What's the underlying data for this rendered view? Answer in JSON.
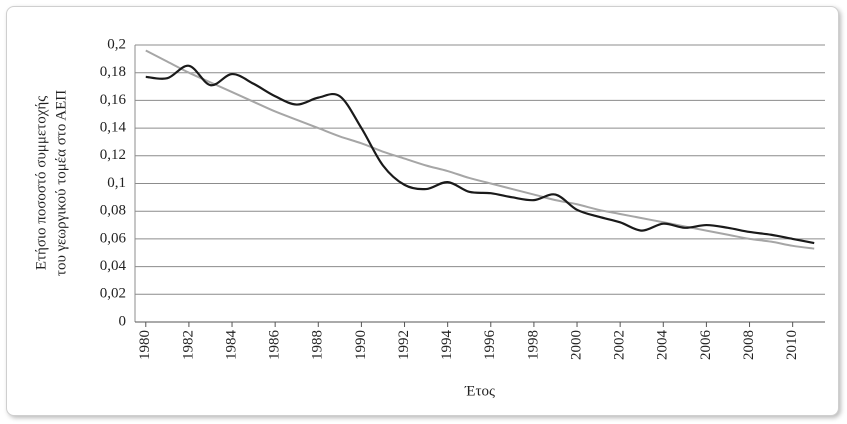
{
  "chart_data": {
    "type": "line",
    "ylabel": [
      "Ετήσιο ποσοστό συμμετοχής",
      "του γεωργικού τομέα στο ΑΕΠ"
    ],
    "xlabel": "Έτος",
    "x": [
      1980,
      1981,
      1982,
      1983,
      1984,
      1985,
      1986,
      1987,
      1988,
      1989,
      1990,
      1991,
      1992,
      1993,
      1994,
      1995,
      1996,
      1997,
      1998,
      1999,
      2000,
      2001,
      2002,
      2003,
      2004,
      2005,
      2006,
      2007,
      2008,
      2009,
      2010,
      2011
    ],
    "series": [
      {
        "color": "#1a1a1a",
        "values": [
          0.177,
          0.176,
          0.185,
          0.171,
          0.179,
          0.172,
          0.163,
          0.157,
          0.162,
          0.163,
          0.14,
          0.113,
          0.099,
          0.096,
          0.101,
          0.094,
          0.093,
          0.09,
          0.088,
          0.092,
          0.081,
          0.076,
          0.072,
          0.066,
          0.071,
          0.068,
          0.07,
          0.068,
          0.065,
          0.063,
          0.06,
          0.057
        ]
      },
      {
        "color": "#a6a6a6",
        "values": [
          0.196,
          0.188,
          0.18,
          0.173,
          0.166,
          0.159,
          0.152,
          0.146,
          0.14,
          0.134,
          0.129,
          0.123,
          0.118,
          0.113,
          0.109,
          0.104,
          0.1,
          0.096,
          0.092,
          0.088,
          0.085,
          0.081,
          0.078,
          0.075,
          0.072,
          0.069,
          0.066,
          0.063,
          0.06,
          0.058,
          0.055,
          0.053
        ]
      }
    ],
    "xlim": [
      1979.5,
      2011.5
    ],
    "xticks": [
      1980,
      1982,
      1984,
      1986,
      1988,
      1990,
      1992,
      1994,
      1996,
      1998,
      2000,
      2002,
      2004,
      2006,
      2008,
      2010
    ],
    "ylim": [
      0,
      0.2
    ],
    "yticks": [
      0,
      {
        "value": 0.02,
        "label": "0,02"
      },
      {
        "value": 0.04,
        "label": "0,04"
      },
      {
        "value": 0.06,
        "label": "0,06"
      },
      {
        "value": 0.08,
        "label": "0,08"
      },
      {
        "value": 0.1,
        "label": "0,1"
      },
      {
        "value": 0.12,
        "label": "0,12"
      },
      {
        "value": 0.14,
        "label": "0,14"
      },
      {
        "value": 0.16,
        "label": "0,16"
      },
      {
        "value": 0.18,
        "label": "0,18"
      },
      {
        "value": 0.2,
        "label": "0,2"
      }
    ],
    "grid": true
  }
}
